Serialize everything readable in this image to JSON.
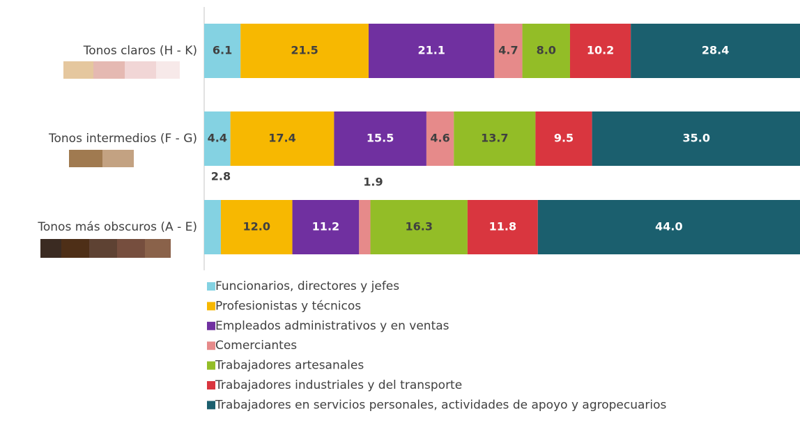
{
  "chart_data": {
    "type": "stacked_bar_horizontal",
    "categories": [
      "Tonos claros (H - K)",
      "Tonos intermedios (F - G)",
      "Tonos más obscuros (A - E)"
    ],
    "xlim": [
      0,
      100
    ],
    "series": [
      {
        "name": "Funcionarios, directores y jefes",
        "color": "#84d2e2",
        "values": [
          6.1,
          4.4,
          2.8
        ]
      },
      {
        "name": "Profesionistas y técnicos",
        "color": "#f7b801",
        "values": [
          21.5,
          17.4,
          12.0
        ]
      },
      {
        "name": "Empleados administrativos y en ventas",
        "color": "#7030a0",
        "values": [
          21.1,
          15.5,
          11.2
        ]
      },
      {
        "name": "Comerciantes",
        "color": "#e68a8a",
        "values": [
          4.7,
          4.6,
          1.9
        ]
      },
      {
        "name": "Trabajadores artesanales",
        "color": "#93bd27",
        "values": [
          8.0,
          13.7,
          16.3
        ]
      },
      {
        "name": "Trabajadores industriales y del transporte",
        "color": "#d9363f",
        "values": [
          10.2,
          9.5,
          11.8
        ]
      },
      {
        "name": "Trabajadores en servicios personales, actividades de apoyo y agropecuarios",
        "color": "#1b5f6e",
        "values": [
          28.4,
          35.0,
          44.0
        ]
      }
    ],
    "value_labels": [
      [
        "6.1",
        "4.4",
        "2.8"
      ],
      [
        "21.5",
        "17.4",
        "12.0"
      ],
      [
        "21.1",
        "15.5",
        "11.2"
      ],
      [
        "4.7",
        "4.6",
        "1.9"
      ],
      [
        "8.0",
        "13.7",
        "16.3"
      ],
      [
        "10.2",
        "9.5",
        "11.8"
      ],
      [
        "28.4",
        "35.0",
        "44.0"
      ]
    ]
  }
}
